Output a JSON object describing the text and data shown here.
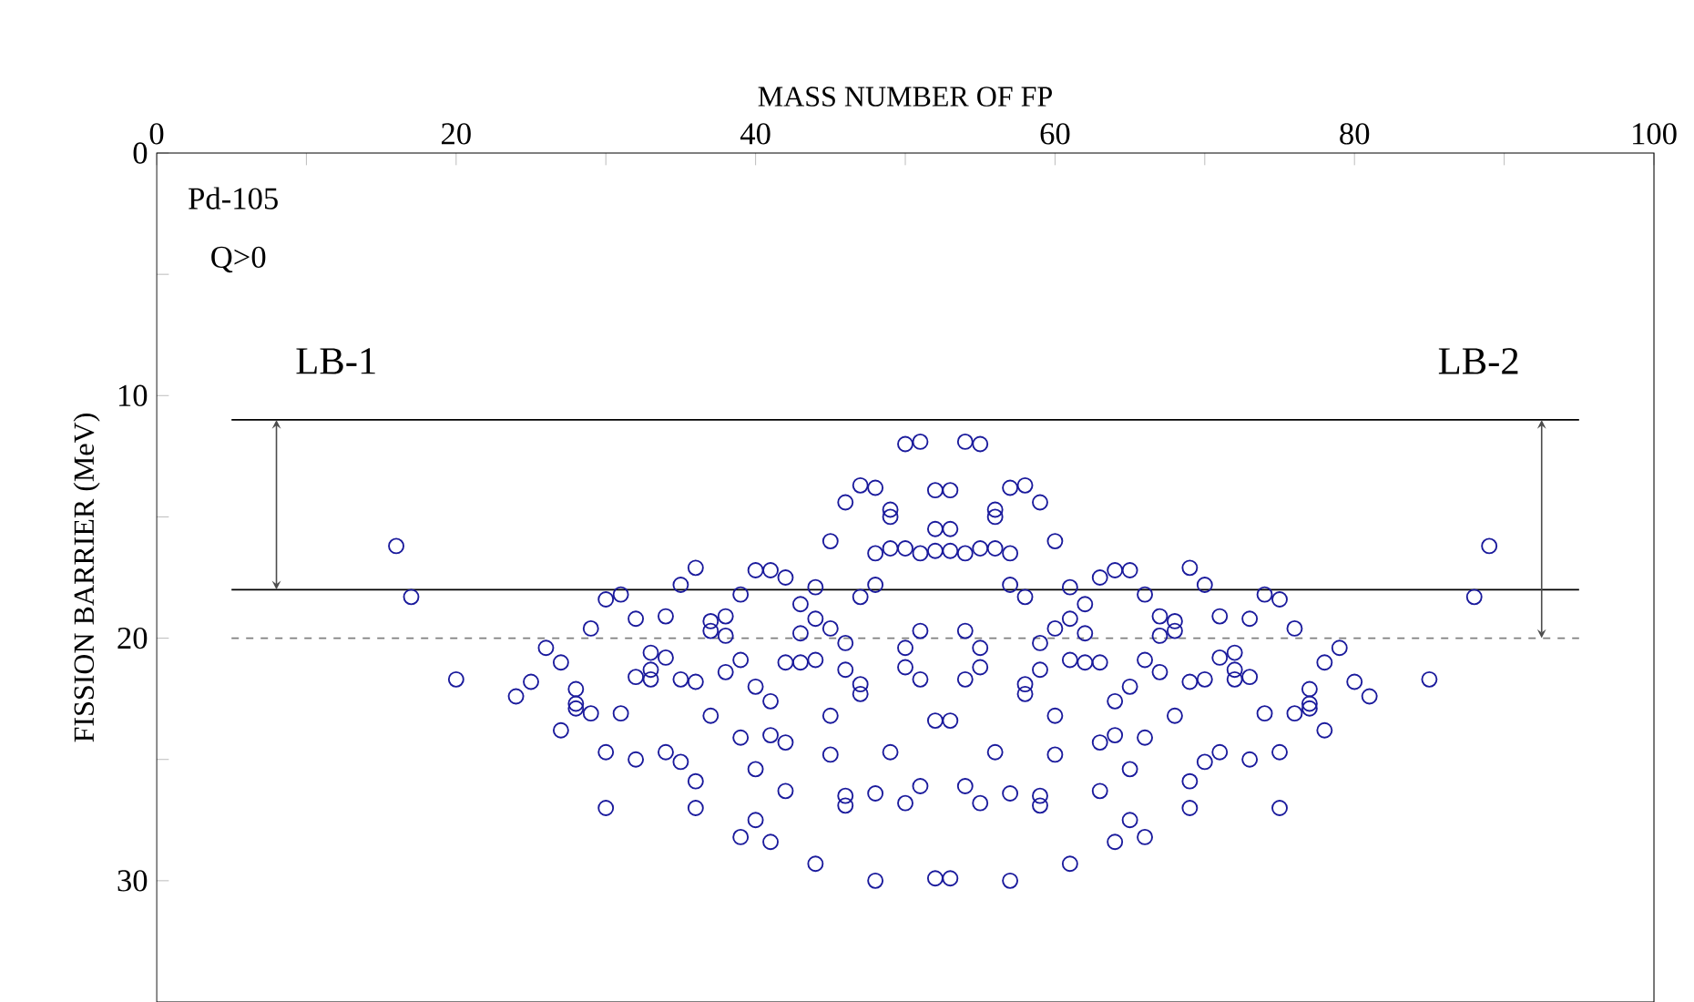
{
  "chart_data": {
    "type": "scatter",
    "xlabel": "MASS NUMBER OF FP",
    "ylabel": "FISSION BARRIER (MeV)",
    "color": "#1a1a9c",
    "marker": "circle",
    "xlim": [
      0,
      100
    ],
    "ylim": [
      35,
      0
    ],
    "xticks": [
      0,
      {
        "value": 10,
        "label": null
      },
      20,
      {
        "value": 30,
        "label": null
      },
      40,
      {
        "value": 50,
        "label": null
      },
      60,
      {
        "value": 70,
        "label": null
      },
      80,
      {
        "value": 90,
        "label": null
      },
      100
    ],
    "yticks": [
      0,
      {
        "value": 5,
        "label": null
      },
      10,
      {
        "value": 15,
        "label": null
      },
      20,
      {
        "value": 25,
        "label": null
      },
      30
    ],
    "ref_lines": [
      {
        "axis": "y",
        "value": 11,
        "color": "#000000"
      },
      {
        "axis": "y",
        "value": 18,
        "color": "#000000"
      },
      {
        "axis": "y",
        "value": 20,
        "color": "#808080",
        "line_style": "dashed"
      }
    ],
    "annotations": [
      "Pd-105",
      "Q>0",
      "LB-1",
      "LB-2"
    ],
    "x": [
      16,
      17,
      20,
      24,
      25,
      26,
      27,
      27,
      28,
      28,
      28,
      29,
      29,
      30,
      30,
      30,
      31,
      31,
      32,
      32,
      32,
      33,
      33,
      33,
      34,
      34,
      34,
      35,
      35,
      35,
      36,
      36,
      36,
      36,
      37,
      37,
      37,
      38,
      38,
      38,
      39,
      39,
      39,
      39,
      40,
      40,
      40,
      40,
      41,
      41,
      41,
      41,
      42,
      42,
      42,
      42,
      43,
      43,
      43,
      44,
      44,
      44,
      44,
      45,
      45,
      45,
      45,
      46,
      46,
      46,
      46,
      46,
      47,
      47,
      47,
      47,
      48,
      48,
      48,
      48,
      48,
      49,
      49,
      49,
      49,
      50,
      50,
      50,
      50,
      50,
      51,
      51,
      51,
      51,
      51,
      52,
      52,
      52,
      52,
      52,
      53,
      53,
      53,
      53,
      53,
      54,
      54,
      54,
      54,
      54,
      55,
      55,
      55,
      55,
      55,
      56,
      56,
      56,
      56,
      57,
      57,
      57,
      57,
      57,
      58,
      58,
      58,
      58,
      59,
      59,
      59,
      59,
      59,
      60,
      60,
      60,
      60,
      61,
      61,
      61,
      61,
      62,
      62,
      62,
      63,
      63,
      63,
      63,
      64,
      64,
      64,
      64,
      65,
      65,
      65,
      65,
      66,
      66,
      66,
      66,
      67,
      67,
      67,
      68,
      68,
      68,
      69,
      69,
      69,
      69,
      70,
      70,
      70,
      71,
      71,
      71,
      72,
      72,
      72,
      73,
      73,
      73,
      74,
      74,
      75,
      75,
      75,
      76,
      76,
      77,
      77,
      77,
      78,
      78,
      79,
      80,
      81,
      85,
      88,
      89
    ],
    "values": [
      16.2,
      18.3,
      21.7,
      22.4,
      21.8,
      20.4,
      21.0,
      23.8,
      22.1,
      22.7,
      22.9,
      19.6,
      23.1,
      18.4,
      24.7,
      27.0,
      18.2,
      23.1,
      19.2,
      21.6,
      25.0,
      20.6,
      21.3,
      21.7,
      19.1,
      20.8,
      24.7,
      17.8,
      21.7,
      25.1,
      17.1,
      21.8,
      25.9,
      27.0,
      19.3,
      19.7,
      23.2,
      19.1,
      19.9,
      21.4,
      18.2,
      20.9,
      24.1,
      28.2,
      17.2,
      22.0,
      25.4,
      27.5,
      17.2,
      22.6,
      24.0,
      28.4,
      17.5,
      21.0,
      24.3,
      26.3,
      18.6,
      19.8,
      21.0,
      17.9,
      19.2,
      20.9,
      29.3,
      16.0,
      19.6,
      23.2,
      24.8,
      14.4,
      20.2,
      21.3,
      26.5,
      26.9,
      13.7,
      18.3,
      21.9,
      22.3,
      13.8,
      16.5,
      17.8,
      26.4,
      30.0,
      14.7,
      15.0,
      16.3,
      24.7,
      12.0,
      16.3,
      20.4,
      21.2,
      26.8,
      11.9,
      16.5,
      19.7,
      21.7,
      26.1,
      13.9,
      15.5,
      16.4,
      23.4,
      29.9,
      13.9,
      15.5,
      16.4,
      23.4,
      29.9,
      11.9,
      16.5,
      19.7,
      21.7,
      26.1,
      12.0,
      16.3,
      20.4,
      21.2,
      26.8,
      14.7,
      15.0,
      16.3,
      24.7,
      13.8,
      16.5,
      17.8,
      26.4,
      30.0,
      13.7,
      18.3,
      21.9,
      22.3,
      14.4,
      20.2,
      21.3,
      26.5,
      26.9,
      16.0,
      19.6,
      23.2,
      24.8,
      17.9,
      19.2,
      20.9,
      29.3,
      18.6,
      19.8,
      21.0,
      17.5,
      21.0,
      24.3,
      26.3,
      17.2,
      22.6,
      24.0,
      28.4,
      17.2,
      22.0,
      25.4,
      27.5,
      18.2,
      20.9,
      24.1,
      28.2,
      19.1,
      19.9,
      21.4,
      19.3,
      19.7,
      23.2,
      17.1,
      21.8,
      25.9,
      27.0,
      17.8,
      21.7,
      25.1,
      19.1,
      20.8,
      24.7,
      20.6,
      21.3,
      21.7,
      19.2,
      21.6,
      25.0,
      18.2,
      23.1,
      18.4,
      24.7,
      27.0,
      19.6,
      23.1,
      22.1,
      22.7,
      22.9,
      21.0,
      23.8,
      20.4,
      21.8,
      22.4,
      21.7,
      18.3,
      16.2
    ]
  }
}
